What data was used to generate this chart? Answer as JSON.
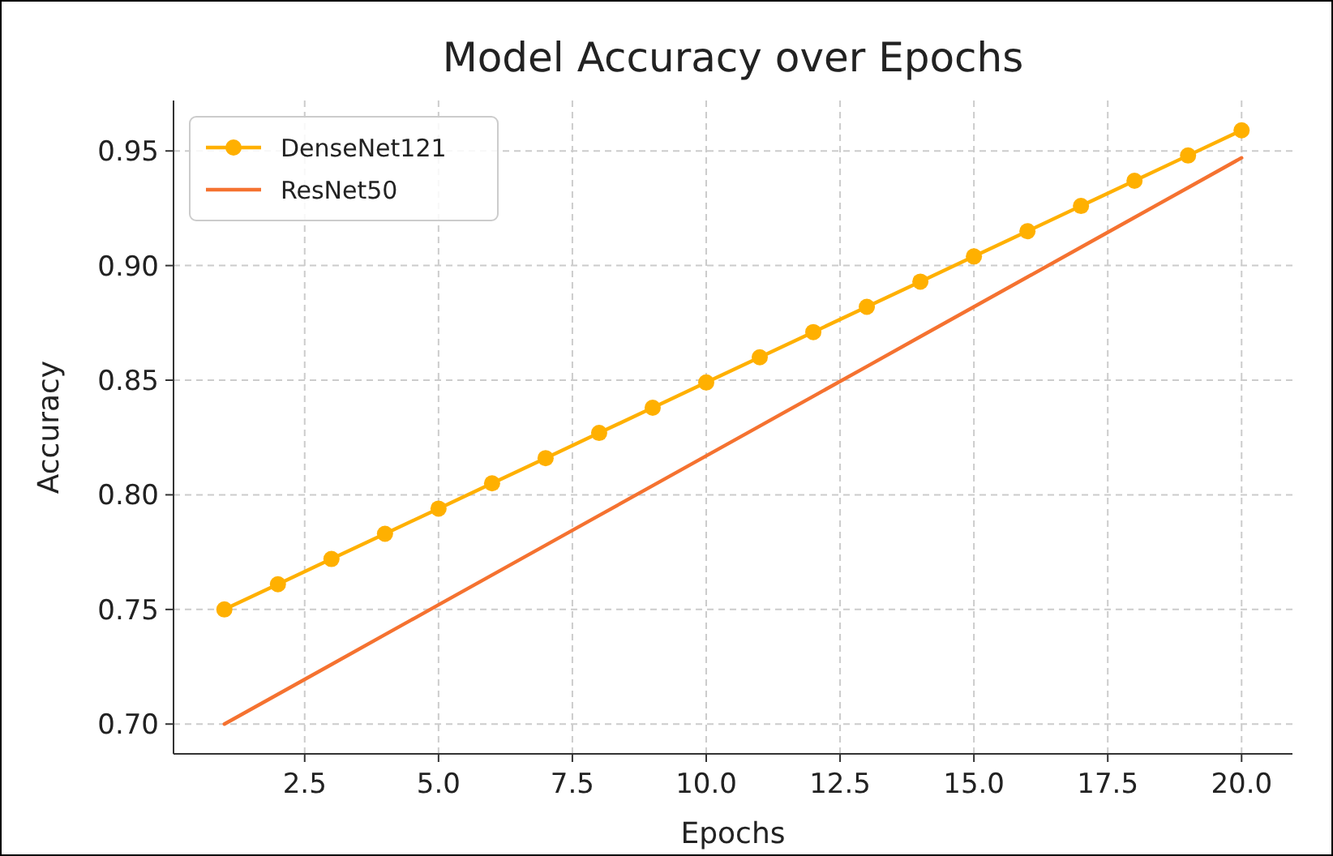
{
  "chart_data": {
    "type": "line",
    "title": "Model Accuracy over Epochs",
    "xlabel": "Epochs",
    "ylabel": "Accuracy",
    "x": [
      1,
      2,
      3,
      4,
      5,
      6,
      7,
      8,
      9,
      10,
      11,
      12,
      13,
      14,
      15,
      16,
      17,
      18,
      19,
      20
    ],
    "series": [
      {
        "name": "DenseNet121",
        "color": "#ffb000",
        "marker": "circle",
        "values": [
          0.75,
          0.761,
          0.772,
          0.783,
          0.794,
          0.805,
          0.816,
          0.827,
          0.838,
          0.849,
          0.86,
          0.871,
          0.882,
          0.893,
          0.904,
          0.915,
          0.926,
          0.937,
          0.948,
          0.959
        ]
      },
      {
        "name": "ResNet50",
        "color": "#f57230",
        "marker": "none",
        "values": [
          0.7,
          0.713,
          0.726,
          0.739,
          0.752,
          0.765,
          0.778,
          0.791,
          0.804,
          0.817,
          0.83,
          0.843,
          0.856,
          0.869,
          0.882,
          0.895,
          0.908,
          0.921,
          0.934,
          0.947
        ]
      }
    ],
    "xlim": [
      0.05,
      20.95
    ],
    "xticks": [
      {
        "value": 2.5,
        "label": "2.5"
      },
      {
        "value": 5,
        "label": "5.0"
      },
      {
        "value": 7.5,
        "label": "7.5"
      },
      {
        "value": 10,
        "label": "10.0"
      },
      {
        "value": 12.5,
        "label": "12.5"
      },
      {
        "value": 15,
        "label": "15.0"
      },
      {
        "value": 17.5,
        "label": "17.5"
      },
      {
        "value": 20,
        "label": "20.0"
      }
    ],
    "ylim": [
      0.687,
      0.972
    ],
    "yticks": [
      {
        "value": 0.7,
        "label": "0.70"
      },
      {
        "value": 0.75,
        "label": "0.75"
      },
      {
        "value": 0.8,
        "label": "0.80"
      },
      {
        "value": 0.85,
        "label": "0.85"
      },
      {
        "value": 0.9,
        "label": "0.90"
      },
      {
        "value": 0.95,
        "label": "0.95"
      }
    ],
    "grid": true,
    "legend": "top left",
    "line_style": "solid"
  }
}
